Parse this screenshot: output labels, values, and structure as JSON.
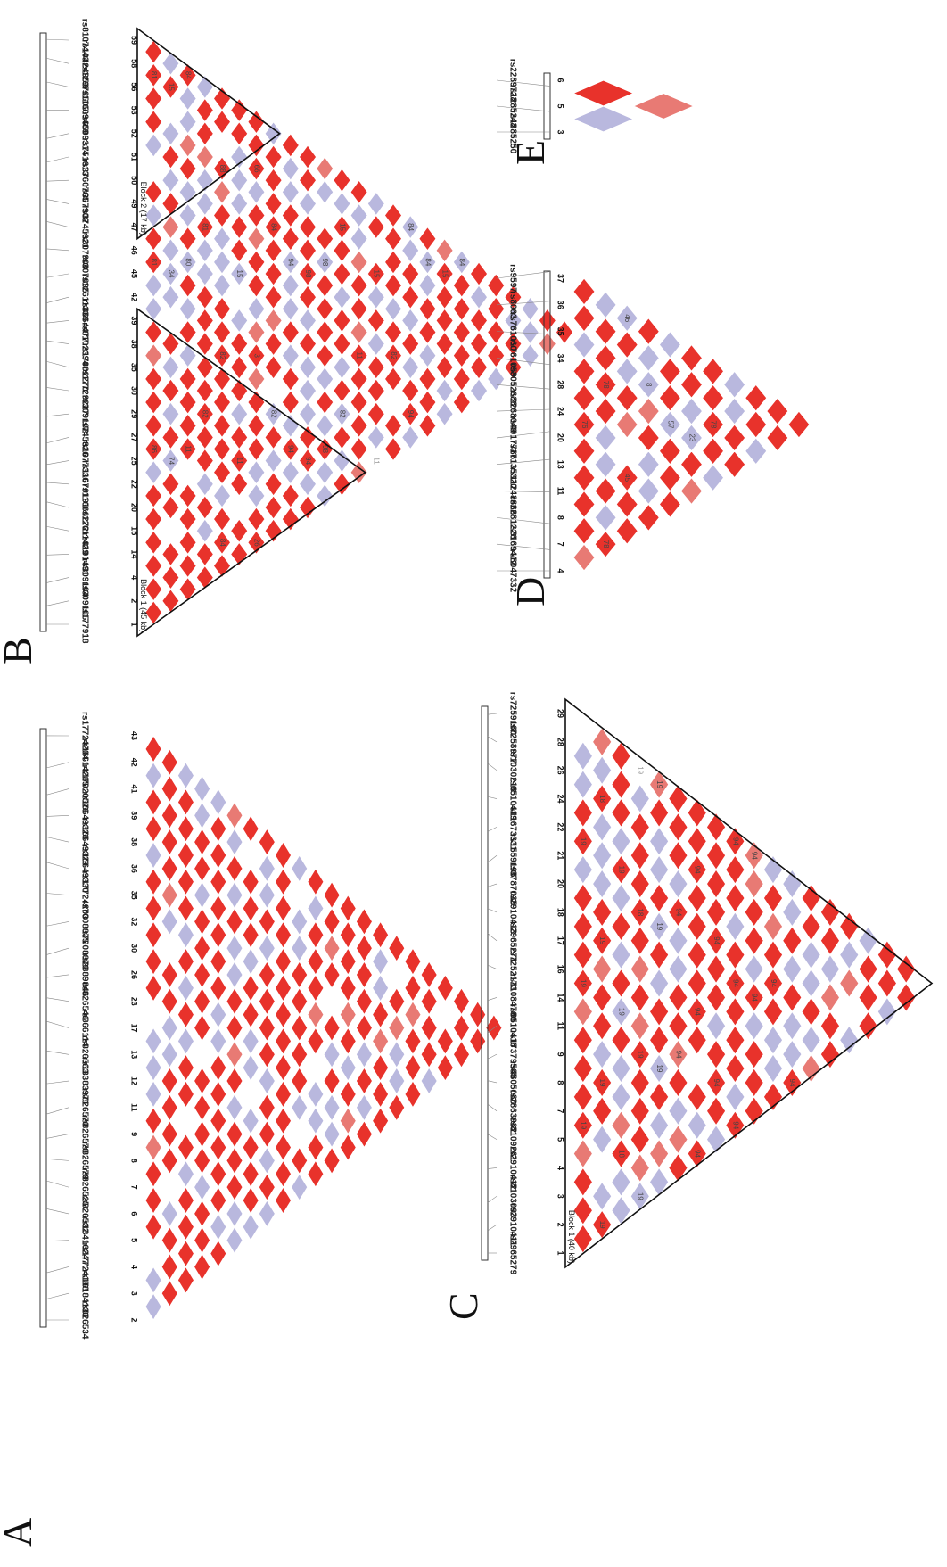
{
  "colors": {
    "high_ld": "#e8322b",
    "low_ld": "#b9b8de",
    "mid_ld": "#e87a74",
    "none": "#ffffff",
    "outline": "#111111"
  },
  "panels": [
    {
      "letter": "A",
      "rsids": [
        "rs826534",
        "rs16184133",
        "rs17724188",
        "rs13416247",
        "rs826532",
        "rs826525",
        "rs826579",
        "rs826578",
        "rs826570",
        "rs13383971",
        "rs826563",
        "rs866114",
        "rs826546",
        "rs2889846",
        "rs7008876",
        "rs7008875",
        "rs17724203",
        "rs16649330",
        "rs16649329",
        "rs16649328",
        "rs17020526",
        "rs16614285",
        "rs17724204"
      ],
      "indices": [
        "2",
        "3",
        "4",
        "5",
        "6",
        "7",
        "8",
        "9",
        "11",
        "12",
        "13",
        "17",
        "23",
        "26",
        "30",
        "32",
        "35",
        "36",
        "38",
        "39",
        "41",
        "42",
        "43"
      ],
      "blocks": [],
      "values": []
    },
    {
      "letter": "B",
      "rsids": [
        "rs177918",
        "rs309185",
        "rs309184",
        "rs8101491",
        "rs12611429",
        "rs11666272",
        "rs11670191",
        "rs1077336",
        "rs745826",
        "rs309182",
        "rs17729227",
        "rs17802270",
        "rs8102394",
        "rs8664477",
        "rs12611339",
        "rs307895",
        "rs307900",
        "rs3745621",
        "rs307902",
        "rs3760765",
        "rs751613",
        "rs6509314",
        "rs11669489",
        "rs12973505",
        "rs10424953",
        "rs8107443"
      ],
      "indices": [
        "1",
        "2",
        "4",
        "14",
        "15",
        "20",
        "22",
        "25",
        "27",
        "29",
        "30",
        "35",
        "38",
        "39",
        "42",
        "45",
        "46",
        "47",
        "49",
        "50",
        "51",
        "52",
        "53",
        "56",
        "58",
        "59"
      ],
      "blocks": [
        "Block 1 (45 kb)",
        "Block 2 (17 kb)"
      ],
      "values": [
        "86",
        "81",
        "81",
        "74",
        "34",
        "15",
        "11",
        "80",
        "84",
        "82",
        "81",
        "84",
        "82",
        "88",
        "11",
        "15",
        "26",
        "3",
        "66",
        "82",
        "84",
        "94",
        "94",
        "94",
        "98",
        "98",
        "98",
        "82",
        "15",
        "11",
        "11",
        "15",
        "82",
        "94",
        "84",
        "84",
        "15",
        "84"
      ]
    },
    {
      "letter": "C",
      "rsids": [
        "rs2965279",
        "rs2910411",
        "rs8103093",
        "rs2910412",
        "rs8109261",
        "rs2863982",
        "rs4805080",
        "rs17379565",
        "rs6510418",
        "rs11084766",
        "rs7252173",
        "rs2965271",
        "rs2910413",
        "rs3787035",
        "rs1559196",
        "rs11673331",
        "rs6510419",
        "rs1030216",
        "rs7258977",
        "rs7259160"
      ],
      "indices": [
        "1",
        "2",
        "3",
        "4",
        "5",
        "7",
        "8",
        "9",
        "11",
        "14",
        "16",
        "17",
        "18",
        "20",
        "21",
        "22",
        "24",
        "26",
        "28",
        "29"
      ],
      "blocks": [
        "Block 1 (40 kb)"
      ],
      "values": [
        "19",
        "19",
        "19",
        "19",
        "19",
        "19",
        "18",
        "18",
        "19",
        "19",
        "19",
        "19",
        "18",
        "19",
        "19",
        "19",
        "19",
        "94",
        "94",
        "94",
        "94",
        "94",
        "94",
        "94",
        "94",
        "94",
        "94",
        "94",
        "94",
        "94",
        "94"
      ]
    },
    {
      "letter": "D",
      "rsids": [
        "rs8047332",
        "rs3169412",
        "rs2281226",
        "rs11248866",
        "rs17135320",
        "rs4017786",
        "rs2268049",
        "rs8052688",
        "rs761059",
        "rs761060",
        "rs8063",
        "rs9597"
      ],
      "indices": [
        "4",
        "7",
        "8",
        "11",
        "13",
        "20",
        "24",
        "28",
        "34",
        "35",
        "36",
        "37"
      ],
      "blocks": [],
      "values": [
        "76",
        "78",
        "78",
        "45",
        "46",
        "8",
        "57",
        "23",
        "78"
      ]
    },
    {
      "letter": "E",
      "rsids": [
        "rs1285250",
        "rs1285248",
        "rs2289728"
      ],
      "indices": [
        "3",
        "5",
        "6"
      ],
      "blocks": [],
      "values": []
    }
  ]
}
